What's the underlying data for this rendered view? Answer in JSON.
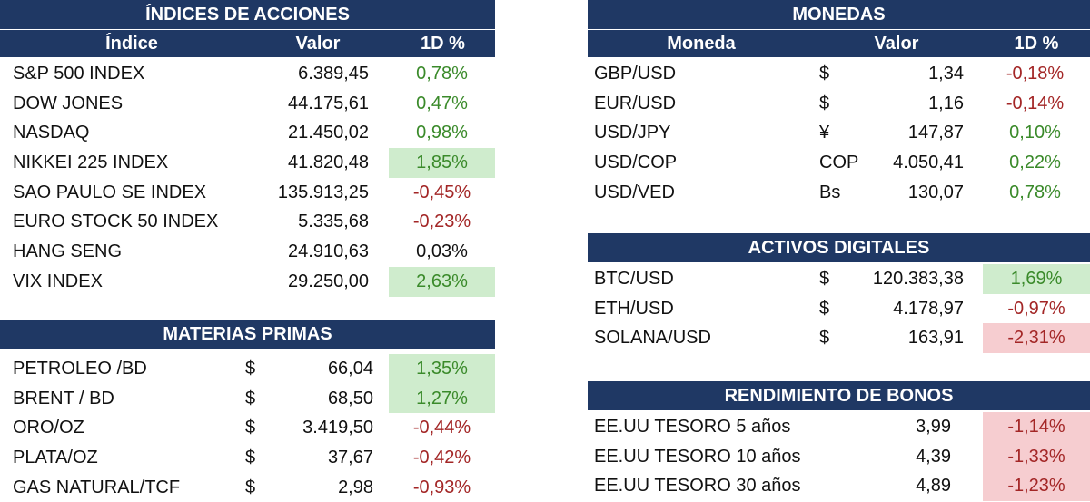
{
  "indices": {
    "title": "ÍNDICES DE ACCIONES",
    "col_name": "Índice",
    "col_value": "Valor",
    "col_change": "1D %",
    "rows": [
      {
        "name": "S&P 500 INDEX",
        "value": "6.389,45",
        "change": "0,78%"
      },
      {
        "name": "DOW JONES",
        "value": "44.175,61",
        "change": "0,47%"
      },
      {
        "name": "NASDAQ",
        "value": "21.450,02",
        "change": "0,98%"
      },
      {
        "name": "NIKKEI 225 INDEX",
        "value": "41.820,48",
        "change": "1,85%"
      },
      {
        "name": "SAO PAULO SE INDEX",
        "value": "135.913,25",
        "change": "-0,45%"
      },
      {
        "name": "EURO STOCK 50 INDEX",
        "value": "5.335,68",
        "change": "-0,23%"
      },
      {
        "name": "HANG SENG",
        "value": "24.910,63",
        "change": "0,03%"
      },
      {
        "name": "VIX INDEX",
        "value": "29.250,00",
        "change": "2,63%"
      }
    ]
  },
  "commodities": {
    "title": "MATERIAS PRIMAS",
    "rows": [
      {
        "name": "PETROLEO /BD",
        "currency": "$",
        "value": "66,04",
        "change": "1,35%"
      },
      {
        "name": "BRENT / BD",
        "currency": "$",
        "value": "68,50",
        "change": "1,27%"
      },
      {
        "name": "ORO/OZ",
        "currency": "$",
        "value": "3.419,50",
        "change": "-0,44%"
      },
      {
        "name": "PLATA/OZ",
        "currency": "$",
        "value": "37,67",
        "change": "-0,42%"
      },
      {
        "name": "GAS NATURAL/TCF",
        "currency": "$",
        "value": "2,98",
        "change": "-0,93%"
      }
    ]
  },
  "currencies": {
    "title": "MONEDAS",
    "col_name": "Moneda",
    "col_value": "Valor",
    "col_change": "1D %",
    "rows": [
      {
        "name": "GBP/USD",
        "currency": "$",
        "value": "1,34",
        "change": "-0,18%"
      },
      {
        "name": "EUR/USD",
        "currency": "$",
        "value": "1,16",
        "change": "-0,14%"
      },
      {
        "name": "USD/JPY",
        "currency": "¥",
        "value": "147,87",
        "change": "0,10%"
      },
      {
        "name": "USD/COP",
        "currency": "COP",
        "value": "4.050,41",
        "change": "0,22%"
      },
      {
        "name": "USD/VED",
        "currency": "Bs",
        "value": "130,07",
        "change": "0,78%"
      }
    ]
  },
  "digital": {
    "title": "ACTIVOS DIGITALES",
    "rows": [
      {
        "name": "BTC/USD",
        "currency": "$",
        "value": "120.383,38",
        "change": "1,69%"
      },
      {
        "name": "ETH/USD",
        "currency": "$",
        "value": "4.178,97",
        "change": "-0,97%"
      },
      {
        "name": "SOLANA/USD",
        "currency": "$",
        "value": "163,91",
        "change": "-2,31%"
      }
    ]
  },
  "bonds": {
    "title": "RENDIMIENTO DE BONOS",
    "rows": [
      {
        "name": "EE.UU TESORO 5 años",
        "value": "3,99",
        "change": "-1,14%"
      },
      {
        "name": "EE.UU TESORO 10 años",
        "value": "4,39",
        "change": "-1,33%"
      },
      {
        "name": "EE.UU TESORO 30 años",
        "value": "4,89",
        "change": "-1,23%"
      }
    ]
  },
  "colors": {
    "header_bg": "#1f3864",
    "positive": "#3a8a2a",
    "negative": "#a32626",
    "highlight_positive": "#cfeccd",
    "highlight_negative": "#f6cdd0"
  }
}
